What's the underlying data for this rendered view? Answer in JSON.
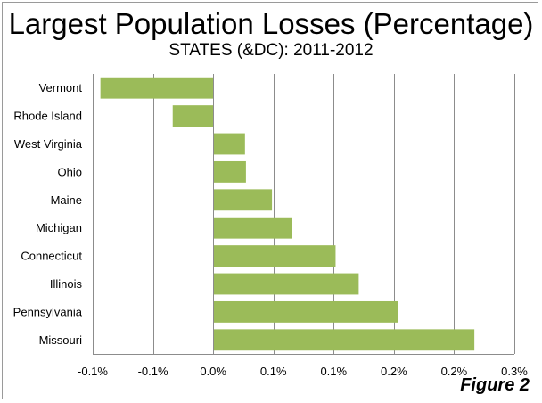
{
  "chart_data": {
    "type": "bar",
    "orientation": "horizontal",
    "title": "Largest Population Losses (Percentage)",
    "subtitle": "STATES (&DC): 2011-2012",
    "categories": [
      "Vermont",
      "Rhode Island",
      "West Virginia",
      "Ohio",
      "Maine",
      "Michigan",
      "Connecticut",
      "Illinois",
      "Pennsylvania",
      "Missouri"
    ],
    "values": [
      -0.0936,
      -0.0336,
      0.0264,
      0.0272,
      0.0488,
      0.0656,
      0.1016,
      0.1208,
      0.1536,
      0.2168
    ],
    "xlim": [
      -0.1,
      0.25
    ],
    "x_ticks": [
      -0.1,
      -0.05,
      0.0,
      0.05,
      0.1,
      0.15,
      0.2,
      0.25
    ],
    "x_tick_labels": [
      "-0.1%",
      "-0.1%",
      "0.0%",
      "0.1%",
      "0.1%",
      "0.2%",
      "0.2%",
      "0.3%"
    ],
    "grid": true,
    "bar_color": "#9bbb59",
    "xlabel": "",
    "ylabel": ""
  },
  "figure_label": "Figure 2"
}
